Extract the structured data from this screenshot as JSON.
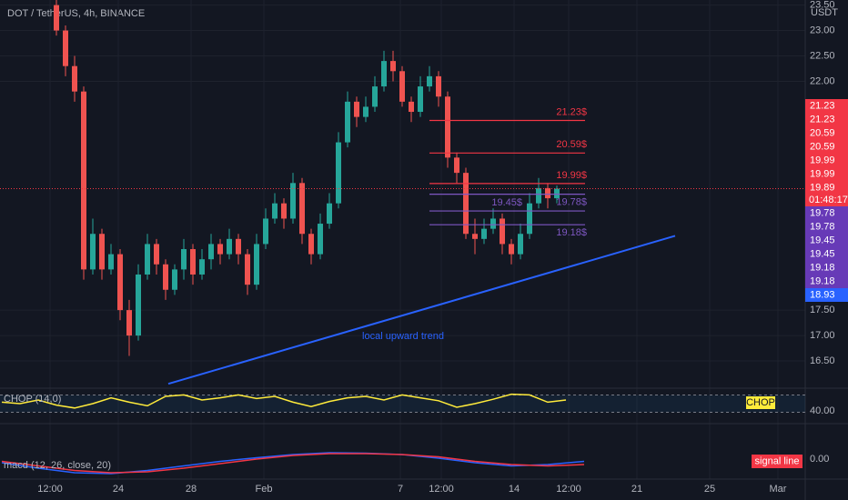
{
  "chart_data": {
    "type": "candlestick",
    "title": "DOT / TetherUS, 4h, BINANCE",
    "currency": "USDT",
    "up_color": "#26a69a",
    "down_color": "#ef5350",
    "open": [
      23.5,
      23.0,
      22.3,
      21.8,
      18.3,
      19.0,
      18.3,
      18.6,
      17.5,
      17.0,
      18.2,
      18.8,
      18.4,
      17.9,
      18.3,
      18.7,
      18.2,
      18.5,
      18.8,
      18.6,
      18.9,
      18.6,
      18.0,
      18.8,
      19.3,
      19.6,
      19.3,
      20.0,
      19.0,
      18.6,
      19.2,
      19.6,
      20.8,
      21.6,
      21.3,
      21.5,
      21.9,
      22.4,
      22.2,
      21.6,
      21.4,
      21.9,
      22.1,
      21.7,
      20.5,
      20.2,
      19.0,
      18.9,
      19.1,
      19.3,
      18.8,
      18.6,
      19.0,
      19.6,
      19.9,
      19.7
    ],
    "high": [
      23.6,
      23.1,
      22.5,
      21.9,
      19.3,
      19.1,
      18.8,
      18.7,
      17.7,
      18.4,
      19.0,
      18.9,
      18.5,
      18.4,
      18.9,
      18.8,
      18.7,
      19.0,
      18.9,
      19.1,
      19.0,
      18.7,
      19.0,
      19.5,
      19.8,
      19.7,
      20.2,
      20.1,
      19.1,
      19.4,
      19.8,
      21.0,
      21.8,
      21.7,
      21.7,
      22.1,
      22.6,
      22.6,
      22.3,
      21.7,
      22.1,
      22.3,
      22.2,
      21.8,
      20.6,
      20.3,
      19.3,
      19.3,
      19.5,
      19.4,
      18.9,
      19.2,
      19.8,
      20.1,
      20.0,
      19.95
    ],
    "low": [
      22.9,
      22.1,
      21.6,
      18.1,
      18.2,
      18.1,
      18.2,
      17.3,
      16.6,
      16.9,
      18.1,
      18.2,
      17.7,
      17.8,
      18.1,
      18.0,
      18.1,
      18.3,
      18.4,
      18.5,
      18.4,
      17.8,
      17.9,
      18.7,
      19.2,
      19.1,
      19.2,
      18.8,
      18.4,
      18.5,
      19.1,
      19.5,
      20.7,
      21.1,
      21.2,
      21.4,
      21.8,
      22.0,
      21.5,
      21.2,
      21.3,
      21.8,
      21.5,
      20.3,
      20.0,
      18.9,
      18.6,
      18.8,
      19.0,
      18.6,
      18.4,
      18.5,
      18.9,
      19.5,
      19.5,
      19.6
    ],
    "close": [
      23.0,
      22.3,
      21.8,
      18.3,
      19.0,
      18.3,
      18.6,
      17.5,
      17.0,
      18.2,
      18.8,
      18.4,
      17.9,
      18.3,
      18.7,
      18.2,
      18.5,
      18.8,
      18.6,
      18.9,
      18.6,
      18.0,
      18.8,
      19.3,
      19.6,
      19.3,
      20.0,
      19.0,
      18.6,
      19.2,
      19.6,
      20.8,
      21.6,
      21.3,
      21.5,
      21.9,
      22.4,
      22.2,
      21.6,
      21.4,
      21.9,
      22.1,
      21.7,
      20.5,
      20.2,
      19.0,
      18.9,
      19.1,
      19.3,
      18.8,
      18.6,
      19.0,
      19.6,
      19.9,
      19.7,
      19.89
    ],
    "xlim": [
      -6.2,
      82.3
    ],
    "xticks": [
      {
        "value": -0.7,
        "label": "12:00"
      },
      {
        "value": 6.8,
        "label": "24"
      },
      {
        "value": 14.8,
        "label": "28"
      },
      {
        "value": 22.8,
        "label": "Feb"
      },
      {
        "value": 37.8,
        "label": "7"
      },
      {
        "value": 42.3,
        "label": "12:00"
      },
      {
        "value": 50.3,
        "label": "14"
      },
      {
        "value": 56.3,
        "label": "12:00"
      },
      {
        "value": 63.8,
        "label": "21"
      },
      {
        "value": 71.8,
        "label": "25"
      },
      {
        "value": 79.3,
        "label": "Mar"
      }
    ],
    "ylim": [
      16.0,
      23.6
    ],
    "yticks": [
      {
        "value": 16.5,
        "label": "16.50"
      },
      {
        "value": 17,
        "label": "17.00"
      },
      {
        "value": 17.5,
        "label": "17.50"
      },
      {
        "value": 22,
        "label": "22.00"
      },
      {
        "value": 22.5,
        "label": "22.50"
      },
      {
        "value": 23,
        "label": "23.00"
      },
      {
        "value": 23.5,
        "label": "23.50"
      }
    ],
    "grid": true,
    "current_price": 19.89,
    "countdown": "01:48:17",
    "levels": [
      {
        "value": 21.23,
        "label": "21.23$",
        "color": "#f23645"
      },
      {
        "value": 20.59,
        "label": "20.59$",
        "color": "#f23645"
      },
      {
        "value": 19.99,
        "label": "19.99$",
        "color": "#f23645"
      },
      {
        "value": 19.78,
        "label": "19.78$",
        "color": "#7e57c2"
      },
      {
        "value": 19.45,
        "label": "19.45$",
        "color": "#7e57c2"
      },
      {
        "value": 19.18,
        "label": "19.18$",
        "color": "#7e57c2"
      }
    ],
    "price_badges": [
      {
        "value": 21.23,
        "color": "#f23645"
      },
      {
        "value": 21.23,
        "color": "#f23645"
      },
      {
        "value": 20.59,
        "color": "#f23645"
      },
      {
        "value": 20.59,
        "color": "#f23645"
      },
      {
        "value": 19.99,
        "color": "#f23645"
      },
      {
        "value": 19.99,
        "color": "#f23645"
      },
      {
        "value": 19.89,
        "color": "#f23645"
      },
      {
        "value": 19.78,
        "color": "#673ab7"
      },
      {
        "value": 19.78,
        "color": "#673ab7"
      },
      {
        "value": 19.45,
        "color": "#673ab7"
      },
      {
        "value": 19.45,
        "color": "#673ab7"
      },
      {
        "value": 19.18,
        "color": "#673ab7"
      },
      {
        "value": 19.18,
        "color": "#673ab7"
      },
      {
        "value": 18.93,
        "color": "#2962ff"
      }
    ],
    "trendline": {
      "x": [
        12.3,
        68
      ],
      "values": [
        16.05,
        18.96
      ],
      "color": "#2962ff",
      "label": "local upward trend"
    },
    "chop": {
      "name": "CHOP (14,0)",
      "badge": "CHOP",
      "color": "#ffeb3b",
      "ylim": [
        25,
        67.5
      ],
      "yticks": [
        {
          "value": 40,
          "label": "40.00"
        }
      ],
      "bands": [
        61.8,
        38.2
      ],
      "x": [
        -6,
        -4,
        -2,
        0,
        2,
        4,
        6,
        8,
        10,
        12,
        14,
        16,
        18,
        20,
        22,
        24,
        26,
        28,
        30,
        32,
        34,
        36,
        38,
        40,
        42,
        44,
        46,
        48,
        50,
        52,
        54,
        56
      ],
      "values": [
        52,
        50,
        55,
        48,
        44,
        50,
        58,
        52,
        47,
        60,
        62,
        55,
        58,
        62,
        57,
        60,
        52,
        46,
        53,
        58,
        60,
        55,
        62,
        58,
        54,
        45,
        50,
        56,
        63,
        62,
        52,
        55
      ]
    },
    "macd": {
      "name": "macd (12, 26, close, 20)",
      "badge": "signal line",
      "ylim": [
        -0.4,
        0.7
      ],
      "yticks": [
        {
          "value": 0,
          "label": "0.00"
        }
      ],
      "x": [
        -6,
        -2,
        2,
        6,
        10,
        14,
        18,
        22,
        26,
        30,
        34,
        38,
        42,
        46,
        50,
        54,
        58
      ],
      "series": [
        {
          "color": "#2962ff",
          "values": [
            -0.08,
            -0.2,
            -0.3,
            -0.32,
            -0.25,
            -0.15,
            -0.05,
            0.03,
            0.1,
            0.14,
            0.13,
            0.1,
            0.02,
            -0.08,
            -0.15,
            -0.12,
            -0.05
          ]
        },
        {
          "color": "#f23645",
          "values": [
            -0.05,
            -0.15,
            -0.25,
            -0.3,
            -0.28,
            -0.2,
            -0.1,
            0,
            0.08,
            0.12,
            0.12,
            0.1,
            0.05,
            -0.05,
            -0.12,
            -0.15,
            -0.12
          ]
        }
      ]
    }
  }
}
